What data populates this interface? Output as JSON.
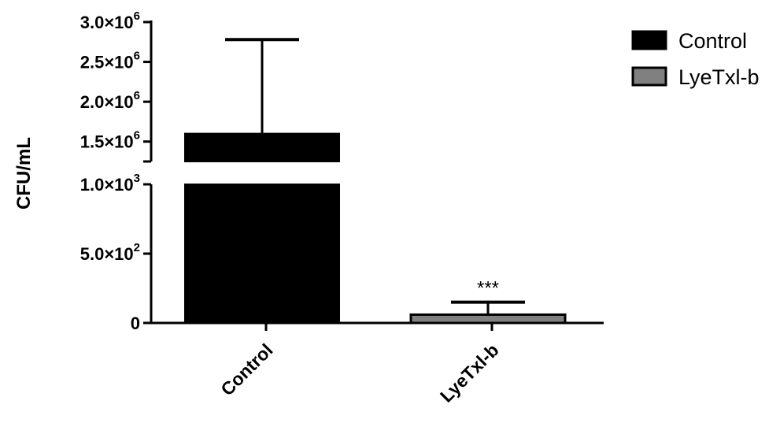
{
  "chart_data": {
    "type": "bar",
    "title": "",
    "xlabel": "",
    "ylabel": "CFU/mL",
    "axis_break": true,
    "ylim_lower": [
      0,
      1000
    ],
    "ylim_upper": [
      1250000,
      3000000
    ],
    "y_ticks_lower": [
      {
        "value": 0,
        "mantissa": "0",
        "exponent": ""
      },
      {
        "value": 500,
        "mantissa": "5.0×10",
        "exponent": "2"
      },
      {
        "value": 1000,
        "mantissa": "1.0×10",
        "exponent": "3"
      }
    ],
    "y_ticks_upper": [
      {
        "value": 1500000,
        "mantissa": "1.5×10",
        "exponent": "6"
      },
      {
        "value": 2000000,
        "mantissa": "2.0×10",
        "exponent": "6"
      },
      {
        "value": 2500000,
        "mantissa": "2.5×10",
        "exponent": "6"
      },
      {
        "value": 3000000,
        "mantissa": "3.0×10",
        "exponent": "6"
      }
    ],
    "categories": [
      "Control",
      "LyeTxl-b"
    ],
    "values": [
      1600000,
      60
    ],
    "error_upper": [
      2780000,
      150
    ],
    "colors": [
      "#000000",
      "#808080"
    ],
    "annotations": [
      {
        "category": "LyeTxl-b",
        "text": "***"
      }
    ],
    "legend": {
      "placement": "top-right",
      "entries": [
        {
          "label": "Control",
          "color": "#000000"
        },
        {
          "label": "LyeTxl-b",
          "color": "#808080"
        }
      ]
    },
    "grid": false
  }
}
